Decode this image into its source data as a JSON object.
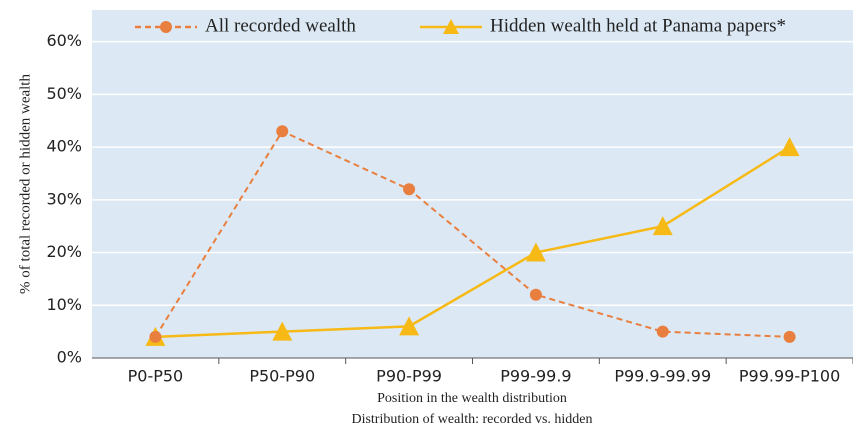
{
  "chart_data": {
    "type": "line",
    "title": "Distribution of wealth: recorded vs. hidden",
    "x_label": "Position in the wealth distribution",
    "y_label": "% of total recorded or hidden wealth",
    "categories": [
      "P0-P50",
      "P50-P90",
      "P90-P99",
      "P99-99.9",
      "P99.9-99.99",
      "P99.99-P100"
    ],
    "series": [
      {
        "name": "All recorded wealth",
        "color": "#e97f3f",
        "marker": "circle",
        "dashed": true,
        "values": [
          4,
          43,
          32,
          12,
          5,
          4
        ]
      },
      {
        "name": "Hidden wealth held at Panama papers*",
        "color": "#f6b915",
        "marker": "triangle",
        "dashed": false,
        "values": [
          4,
          5,
          6,
          20,
          25,
          40
        ]
      }
    ],
    "ylim": [
      0,
      66
    ],
    "yticks": [
      {
        "value": 0,
        "label": "0%"
      },
      {
        "value": 10,
        "label": "10%"
      },
      {
        "value": 20,
        "label": "20%"
      },
      {
        "value": 30,
        "label": "30%"
      },
      {
        "value": 40,
        "label": "40%"
      },
      {
        "value": 50,
        "label": "50%"
      },
      {
        "value": 60,
        "label": "60%"
      }
    ],
    "grid": true
  }
}
